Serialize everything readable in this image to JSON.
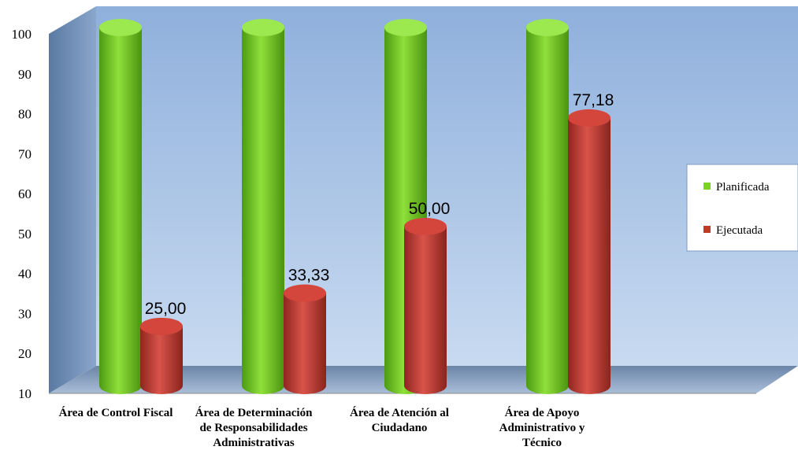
{
  "chart_data": {
    "type": "bar",
    "title": "",
    "xlabel": "",
    "ylabel": "",
    "ylim": [
      10,
      100
    ],
    "yticks": [
      10,
      20,
      30,
      40,
      50,
      60,
      70,
      80,
      90,
      100
    ],
    "grid": false,
    "legend_position": "right",
    "categories": [
      "Área de Control Fiscal",
      "Área de Determinación de Responsabilidades Administrativas",
      "Área de Atención al Ciudadano",
      "Área de Apoyo Administrativo y Técnico"
    ],
    "series": [
      {
        "name": "Planificada",
        "values": [
          100,
          100,
          100,
          100
        ],
        "color": "#7ed321"
      },
      {
        "name": "Ejecutada",
        "values": [
          25.0,
          33.33,
          50.0,
          77.18
        ],
        "color": "#c0392b"
      }
    ],
    "data_labels": {
      "Ejecutada": [
        "25,00",
        "33,33",
        "50,00",
        "77,18"
      ]
    }
  }
}
